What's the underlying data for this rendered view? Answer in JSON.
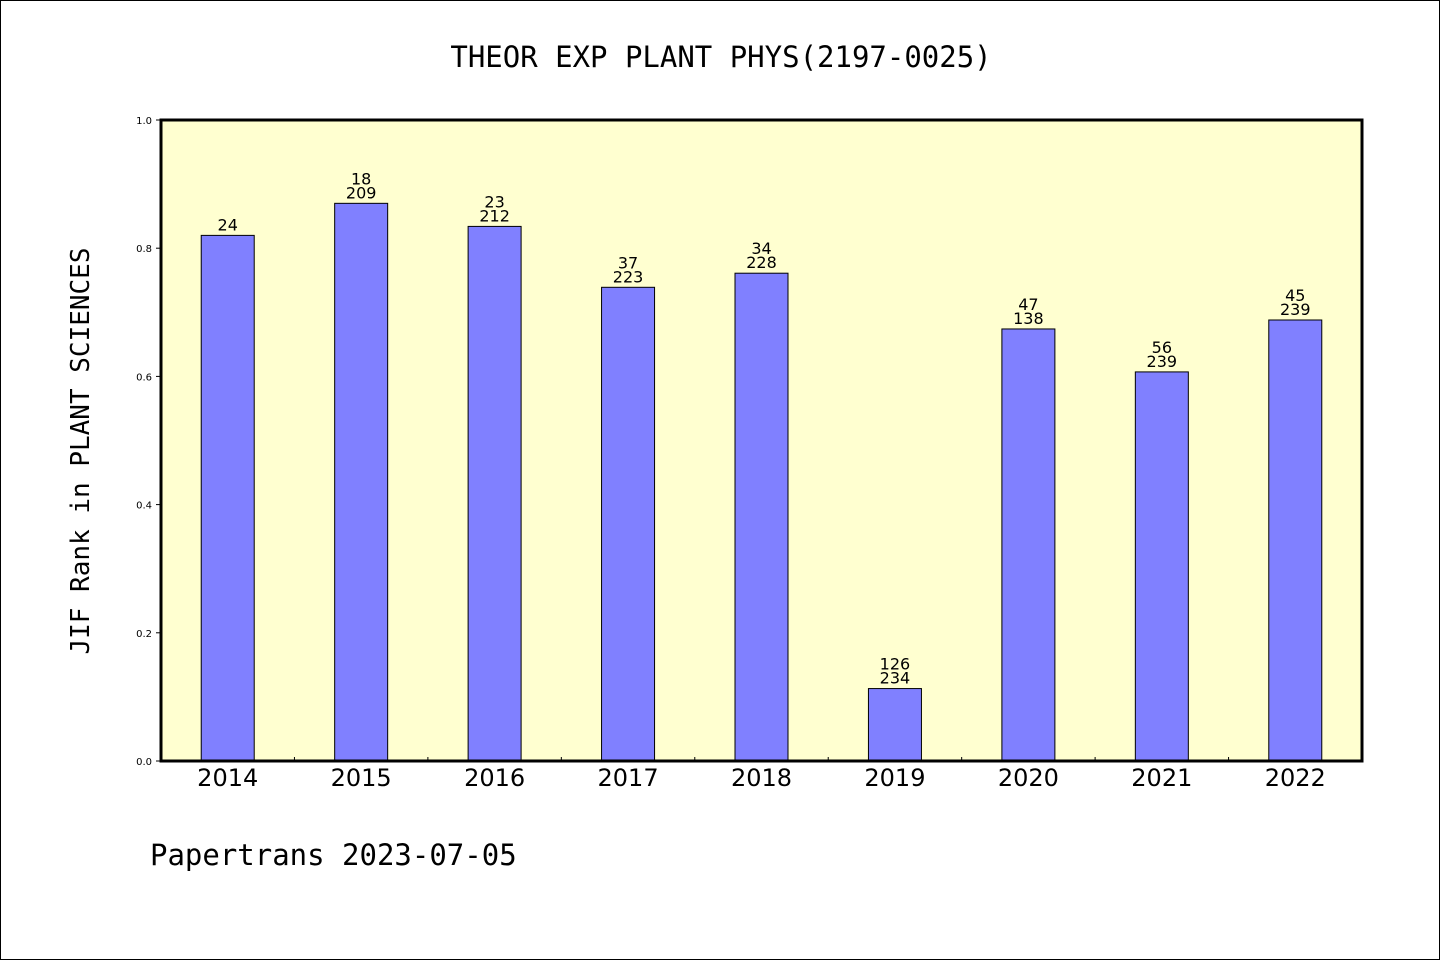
{
  "chart_data": {
    "type": "bar",
    "title": "THEOR EXP PLANT PHYS(2197-0025)",
    "ylabel": "JIF Rank in PLANT SCIENCES",
    "xlabel": "",
    "footer": "Papertrans 2023-07-05",
    "ylim": [
      0,
      1.0
    ],
    "yticks": [
      "0.0",
      "0.2",
      "0.4",
      "0.6",
      "0.8",
      "1.0"
    ],
    "categories": [
      "2014",
      "2015",
      "2016",
      "2017",
      "2018",
      "2019",
      "2020",
      "2021",
      "2022"
    ],
    "values": [
      0.82,
      0.87,
      0.834,
      0.739,
      0.761,
      0.113,
      0.674,
      0.607,
      0.688
    ],
    "bar_labels": [
      [
        "24"
      ],
      [
        "18",
        "209"
      ],
      [
        "23",
        "212"
      ],
      [
        "37",
        "223"
      ],
      [
        "34",
        "228"
      ],
      [
        "126",
        "234"
      ],
      [
        "47",
        "138"
      ],
      [
        "56",
        "239"
      ],
      [
        "45",
        "239"
      ]
    ],
    "grid": false,
    "colors": {
      "bar_fill": "#8080ff",
      "plot_bg": "#ffffd0",
      "frame": "#000000"
    }
  }
}
